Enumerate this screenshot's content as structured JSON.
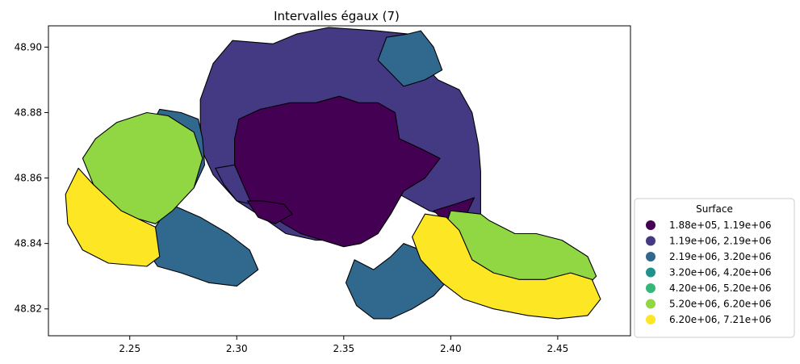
{
  "chart_data": {
    "type": "choropleth",
    "title": "Intervalles égaux (7)",
    "xlim": [
      2.212,
      2.484
    ],
    "ylim": [
      48.8118,
      48.9065
    ],
    "x_ticks": [
      {
        "value": 2.25,
        "label": "2.25"
      },
      {
        "value": 2.3,
        "label": "2.30"
      },
      {
        "value": 2.35,
        "label": "2.35"
      },
      {
        "value": 2.4,
        "label": "2.40"
      },
      {
        "value": 2.45,
        "label": "2.45"
      }
    ],
    "y_ticks": [
      {
        "value": 48.82,
        "label": "48.82"
      },
      {
        "value": 48.84,
        "label": "48.84"
      },
      {
        "value": 48.86,
        "label": "48.86"
      },
      {
        "value": 48.88,
        "label": "48.88"
      },
      {
        "value": 48.9,
        "label": "48.90"
      }
    ],
    "legend": {
      "title": "Surface",
      "placement": "lower-right-outside",
      "classes": [
        {
          "label": "1.88e+05, 1.19e+06",
          "color": "#440154"
        },
        {
          "label": "1.19e+06, 2.19e+06",
          "color": "#443983"
        },
        {
          "label": "2.19e+06, 3.20e+06",
          "color": "#31688e"
        },
        {
          "label": "3.20e+06, 4.20e+06",
          "color": "#21918c"
        },
        {
          "label": "4.20e+06, 5.20e+06",
          "color": "#35b779"
        },
        {
          "label": "5.20e+06, 6.20e+06",
          "color": "#90d743"
        },
        {
          "label": "6.20e+06, 7.21e+06",
          "color": "#fde725"
        }
      ]
    },
    "regions": [
      {
        "class": 1,
        "color": "#443983",
        "points": [
          [
            2.283,
            48.884
          ],
          [
            2.289,
            48.895
          ],
          [
            2.298,
            48.902
          ],
          [
            2.317,
            48.901
          ],
          [
            2.328,
            48.904
          ],
          [
            2.343,
            48.906
          ],
          [
            2.365,
            48.905
          ],
          [
            2.38,
            48.904
          ],
          [
            2.384,
            48.897
          ],
          [
            2.394,
            48.89
          ],
          [
            2.404,
            48.887
          ],
          [
            2.41,
            48.88
          ],
          [
            2.413,
            48.87
          ],
          [
            2.414,
            48.862
          ],
          [
            2.414,
            48.846
          ],
          [
            2.406,
            48.847
          ],
          [
            2.39,
            48.85
          ],
          [
            2.376,
            48.855
          ],
          [
            2.37,
            48.848
          ],
          [
            2.362,
            48.843
          ],
          [
            2.35,
            48.841
          ],
          [
            2.337,
            48.841
          ],
          [
            2.323,
            48.843
          ],
          [
            2.312,
            48.848
          ],
          [
            2.3,
            48.853
          ],
          [
            2.289,
            48.861
          ],
          [
            2.284,
            48.868
          ],
          [
            2.283,
            48.876
          ]
        ]
      },
      {
        "class": 0,
        "color": "#440154",
        "points": [
          [
            2.301,
            48.878
          ],
          [
            2.311,
            48.881
          ],
          [
            2.325,
            48.883
          ],
          [
            2.337,
            48.883
          ],
          [
            2.348,
            48.885
          ],
          [
            2.357,
            48.883
          ],
          [
            2.366,
            48.883
          ],
          [
            2.374,
            48.88
          ],
          [
            2.376,
            48.872
          ],
          [
            2.386,
            48.869
          ],
          [
            2.395,
            48.866
          ],
          [
            2.388,
            48.86
          ],
          [
            2.378,
            48.856
          ],
          [
            2.372,
            48.849
          ],
          [
            2.366,
            48.843
          ],
          [
            2.358,
            48.84
          ],
          [
            2.35,
            48.839
          ],
          [
            2.34,
            48.841
          ],
          [
            2.33,
            48.843
          ],
          [
            2.322,
            48.846
          ],
          [
            2.313,
            48.85
          ],
          [
            2.306,
            48.853
          ],
          [
            2.303,
            48.858
          ],
          [
            2.299,
            48.864
          ],
          [
            2.299,
            48.872
          ]
        ]
      },
      {
        "class": 1,
        "color": "#443983",
        "points": [
          [
            2.299,
            48.864
          ],
          [
            2.303,
            48.858
          ],
          [
            2.307,
            48.852
          ],
          [
            2.3,
            48.853
          ],
          [
            2.294,
            48.858
          ],
          [
            2.29,
            48.863
          ]
        ]
      },
      {
        "class": 0,
        "color": "#440154",
        "points": [
          [
            2.305,
            48.853
          ],
          [
            2.312,
            48.853
          ],
          [
            2.322,
            48.852
          ],
          [
            2.326,
            48.849
          ],
          [
            2.318,
            48.846
          ],
          [
            2.31,
            48.848
          ]
        ]
      },
      {
        "class": 0,
        "color": "#440154",
        "points": [
          [
            2.392,
            48.85
          ],
          [
            2.402,
            48.852
          ],
          [
            2.411,
            48.854
          ],
          [
            2.406,
            48.847
          ],
          [
            2.397,
            48.847
          ]
        ]
      },
      {
        "class": 2,
        "color": "#31688e",
        "points": [
          [
            2.366,
            48.896
          ],
          [
            2.37,
            48.903
          ],
          [
            2.38,
            48.904
          ],
          [
            2.386,
            48.905
          ],
          [
            2.392,
            48.9
          ],
          [
            2.396,
            48.893
          ],
          [
            2.388,
            48.89
          ],
          [
            2.378,
            48.888
          ]
        ]
      },
      {
        "class": 2,
        "color": "#31688e",
        "points": [
          [
            2.28,
            48.857
          ],
          [
            2.285,
            48.864
          ],
          [
            2.284,
            48.872
          ],
          [
            2.282,
            48.878
          ],
          [
            2.274,
            48.88
          ],
          [
            2.264,
            48.881
          ],
          [
            2.26,
            48.876
          ],
          [
            2.268,
            48.866
          ]
        ]
      },
      {
        "class": 2,
        "color": "#31688e",
        "points": [
          [
            2.269,
            48.852
          ],
          [
            2.283,
            48.848
          ],
          [
            2.296,
            48.843
          ],
          [
            2.306,
            48.838
          ],
          [
            2.31,
            48.832
          ],
          [
            2.3,
            48.827
          ],
          [
            2.287,
            48.828
          ],
          [
            2.274,
            48.831
          ],
          [
            2.263,
            48.833
          ],
          [
            2.258,
            48.838
          ],
          [
            2.262,
            48.845
          ]
        ]
      },
      {
        "class": 2,
        "color": "#31688e",
        "points": [
          [
            2.355,
            48.835
          ],
          [
            2.364,
            48.832
          ],
          [
            2.372,
            48.836
          ],
          [
            2.378,
            48.84
          ],
          [
            2.386,
            48.838
          ],
          [
            2.394,
            48.834
          ],
          [
            2.399,
            48.829
          ],
          [
            2.392,
            48.824
          ],
          [
            2.382,
            48.82
          ],
          [
            2.372,
            48.817
          ],
          [
            2.364,
            48.817
          ],
          [
            2.356,
            48.821
          ],
          [
            2.351,
            48.828
          ]
        ]
      },
      {
        "class": 5,
        "color": "#90d743",
        "points": [
          [
            2.258,
            48.88
          ],
          [
            2.268,
            48.879
          ],
          [
            2.28,
            48.874
          ],
          [
            2.284,
            48.866
          ],
          [
            2.28,
            48.857
          ],
          [
            2.27,
            48.85
          ],
          [
            2.262,
            48.846
          ],
          [
            2.246,
            48.849
          ],
          [
            2.233,
            48.858
          ],
          [
            2.228,
            48.866
          ],
          [
            2.234,
            48.872
          ],
          [
            2.244,
            48.877
          ]
        ]
      },
      {
        "class": 5,
        "color": "#90d743",
        "points": [
          [
            2.4,
            48.85
          ],
          [
            2.414,
            48.849
          ],
          [
            2.418,
            48.847
          ],
          [
            2.43,
            48.843
          ],
          [
            2.44,
            48.843
          ],
          [
            2.452,
            48.841
          ],
          [
            2.464,
            48.836
          ],
          [
            2.468,
            48.83
          ],
          [
            2.462,
            48.826
          ],
          [
            2.448,
            48.824
          ],
          [
            2.432,
            48.824
          ],
          [
            2.42,
            48.826
          ],
          [
            2.408,
            48.83
          ],
          [
            2.4,
            48.834
          ],
          [
            2.396,
            48.842
          ]
        ]
      },
      {
        "class": 6,
        "color": "#fde725",
        "points": [
          [
            2.226,
            48.863
          ],
          [
            2.233,
            48.858
          ],
          [
            2.246,
            48.85
          ],
          [
            2.262,
            48.845
          ],
          [
            2.264,
            48.836
          ],
          [
            2.258,
            48.833
          ],
          [
            2.24,
            48.834
          ],
          [
            2.228,
            48.838
          ],
          [
            2.221,
            48.846
          ],
          [
            2.22,
            48.855
          ]
        ]
      },
      {
        "class": 6,
        "color": "#fde725",
        "points": [
          [
            2.388,
            48.849
          ],
          [
            2.398,
            48.848
          ],
          [
            2.404,
            48.844
          ],
          [
            2.41,
            48.835
          ],
          [
            2.42,
            48.831
          ],
          [
            2.432,
            48.829
          ],
          [
            2.444,
            48.829
          ],
          [
            2.456,
            48.831
          ],
          [
            2.466,
            48.829
          ],
          [
            2.47,
            48.823
          ],
          [
            2.464,
            48.818
          ],
          [
            2.45,
            48.817
          ],
          [
            2.436,
            48.818
          ],
          [
            2.42,
            48.82
          ],
          [
            2.406,
            48.823
          ],
          [
            2.396,
            48.828
          ],
          [
            2.386,
            48.835
          ],
          [
            2.382,
            48.842
          ]
        ]
      }
    ]
  }
}
